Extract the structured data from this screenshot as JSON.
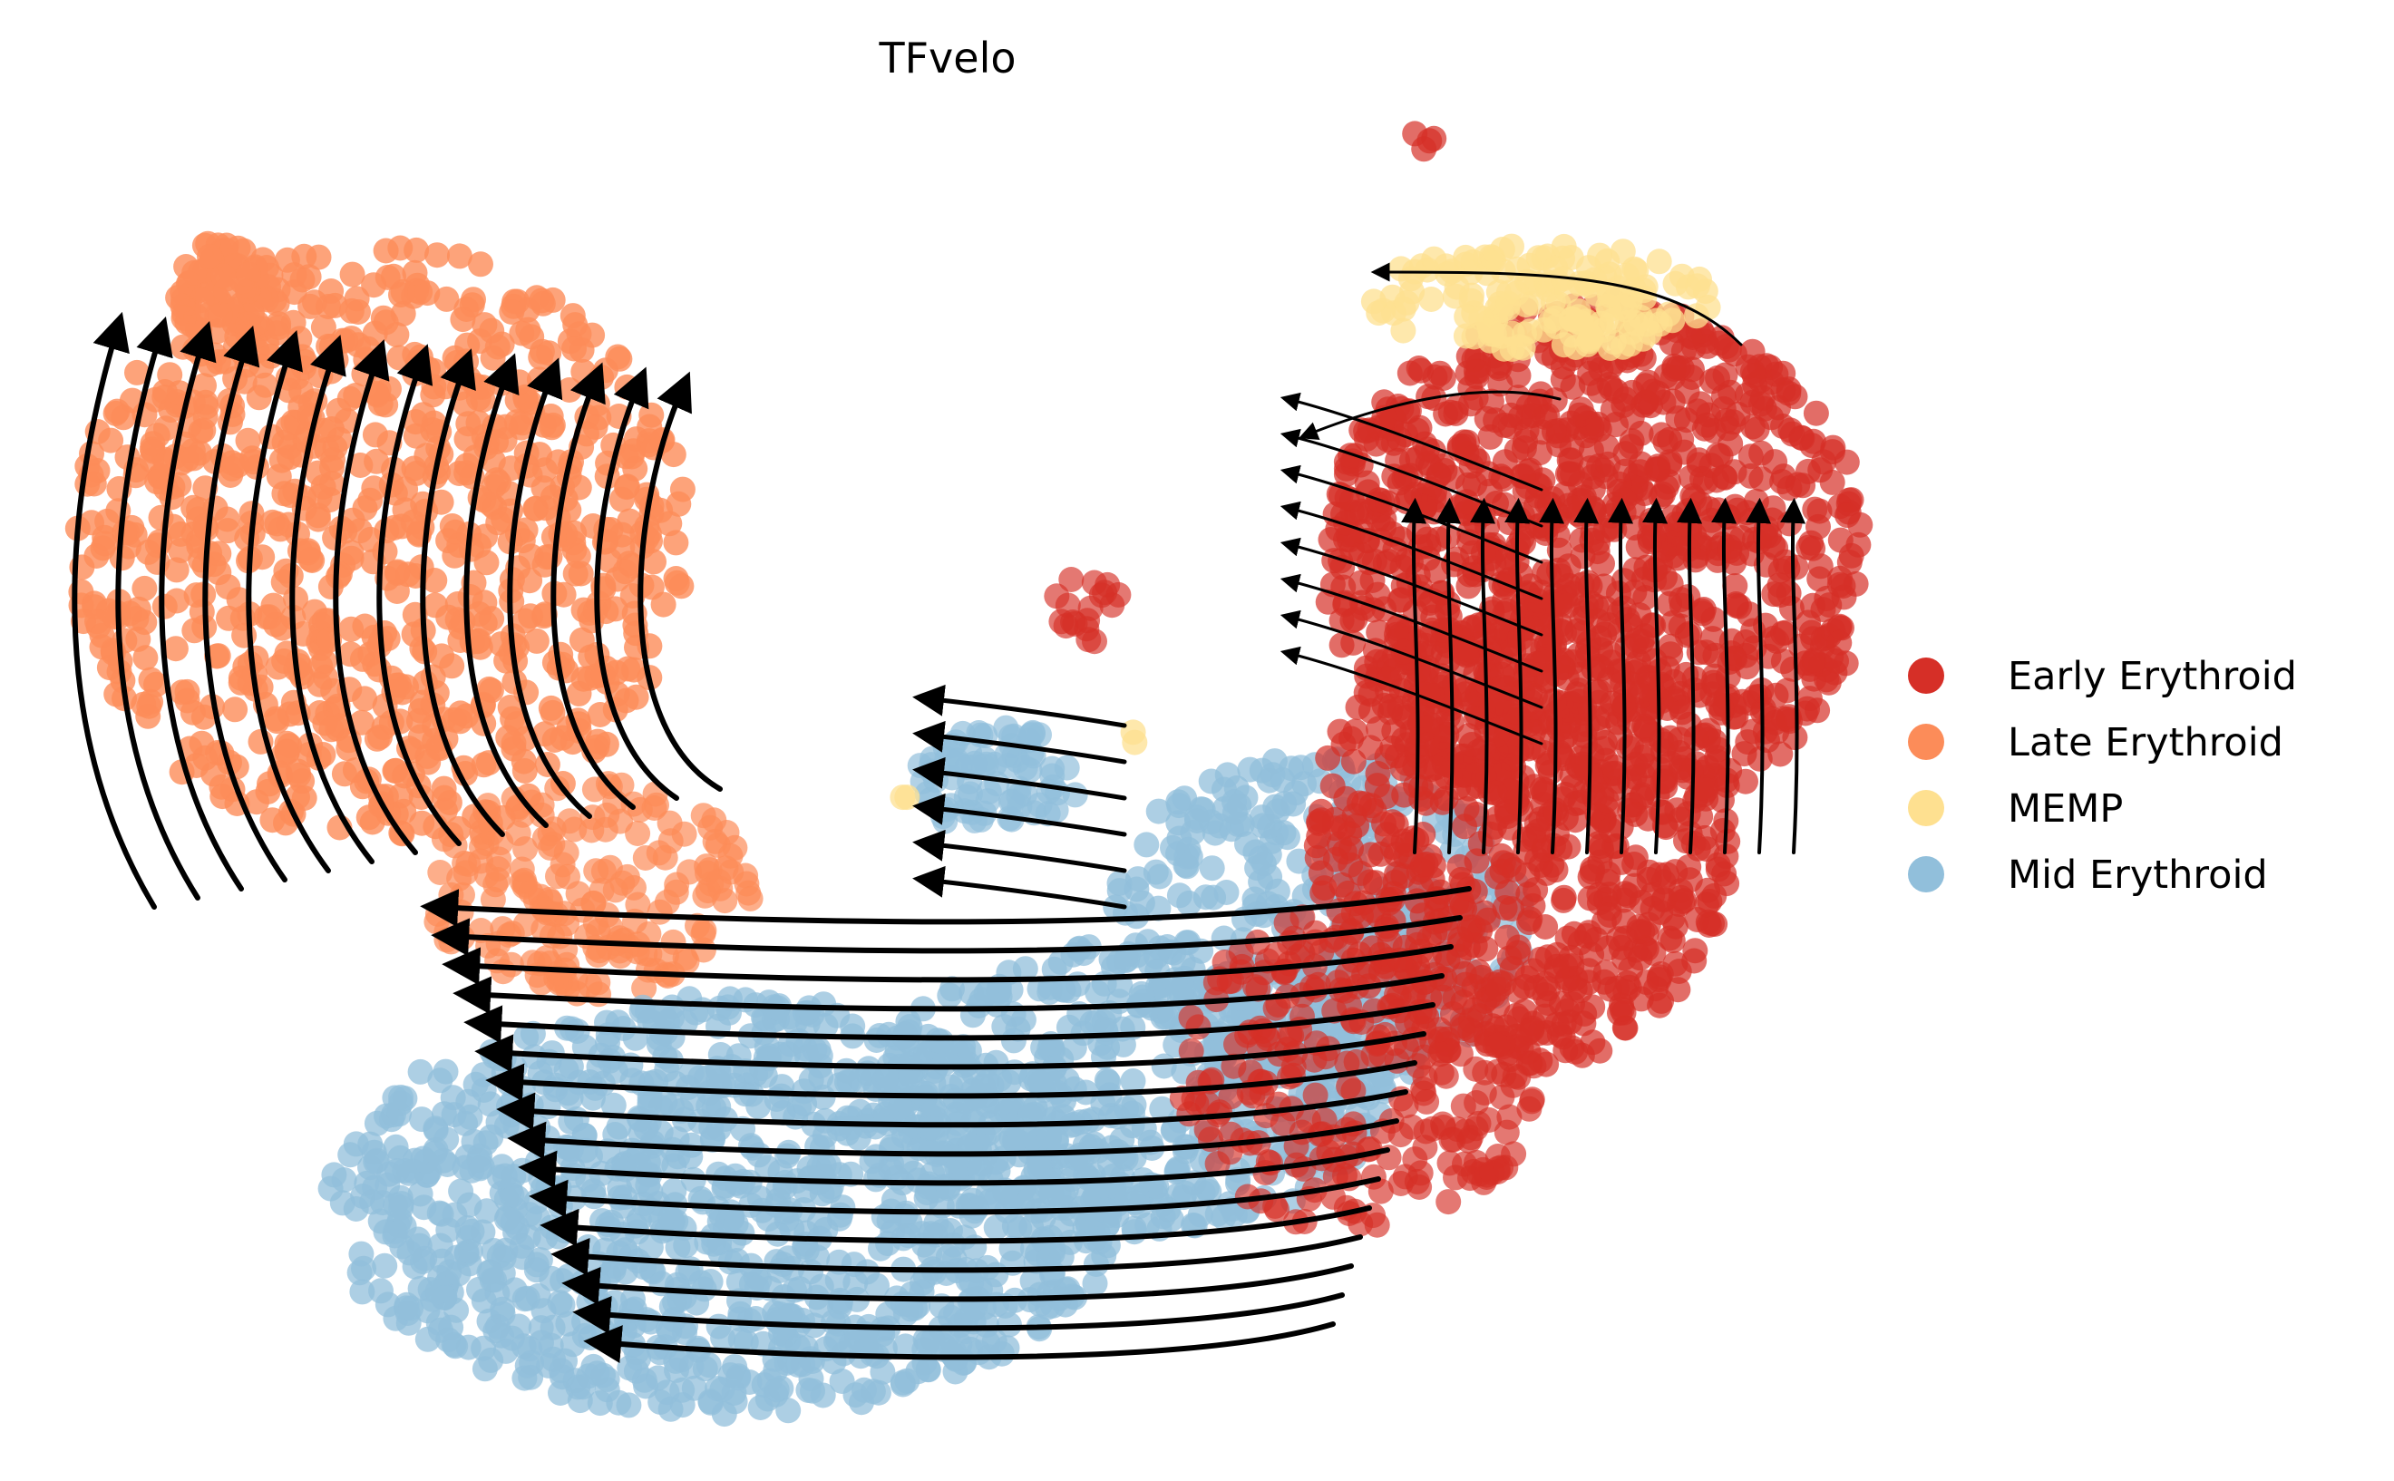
{
  "chart_data": {
    "type": "scatter",
    "title": "TFvelo",
    "xlabel": "",
    "ylabel": "",
    "axes_visible": false,
    "overlay": "velocity-streamlines",
    "legend_position": "right",
    "series": [
      {
        "name": "Early Erythroid",
        "color": "#d62f27"
      },
      {
        "name": "Late Erythroid",
        "color": "#fc8c59"
      },
      {
        "name": "MEMP",
        "color": "#fee090"
      },
      {
        "name": "Mid  Erythroid",
        "color": "#91bfdb"
      }
    ]
  }
}
